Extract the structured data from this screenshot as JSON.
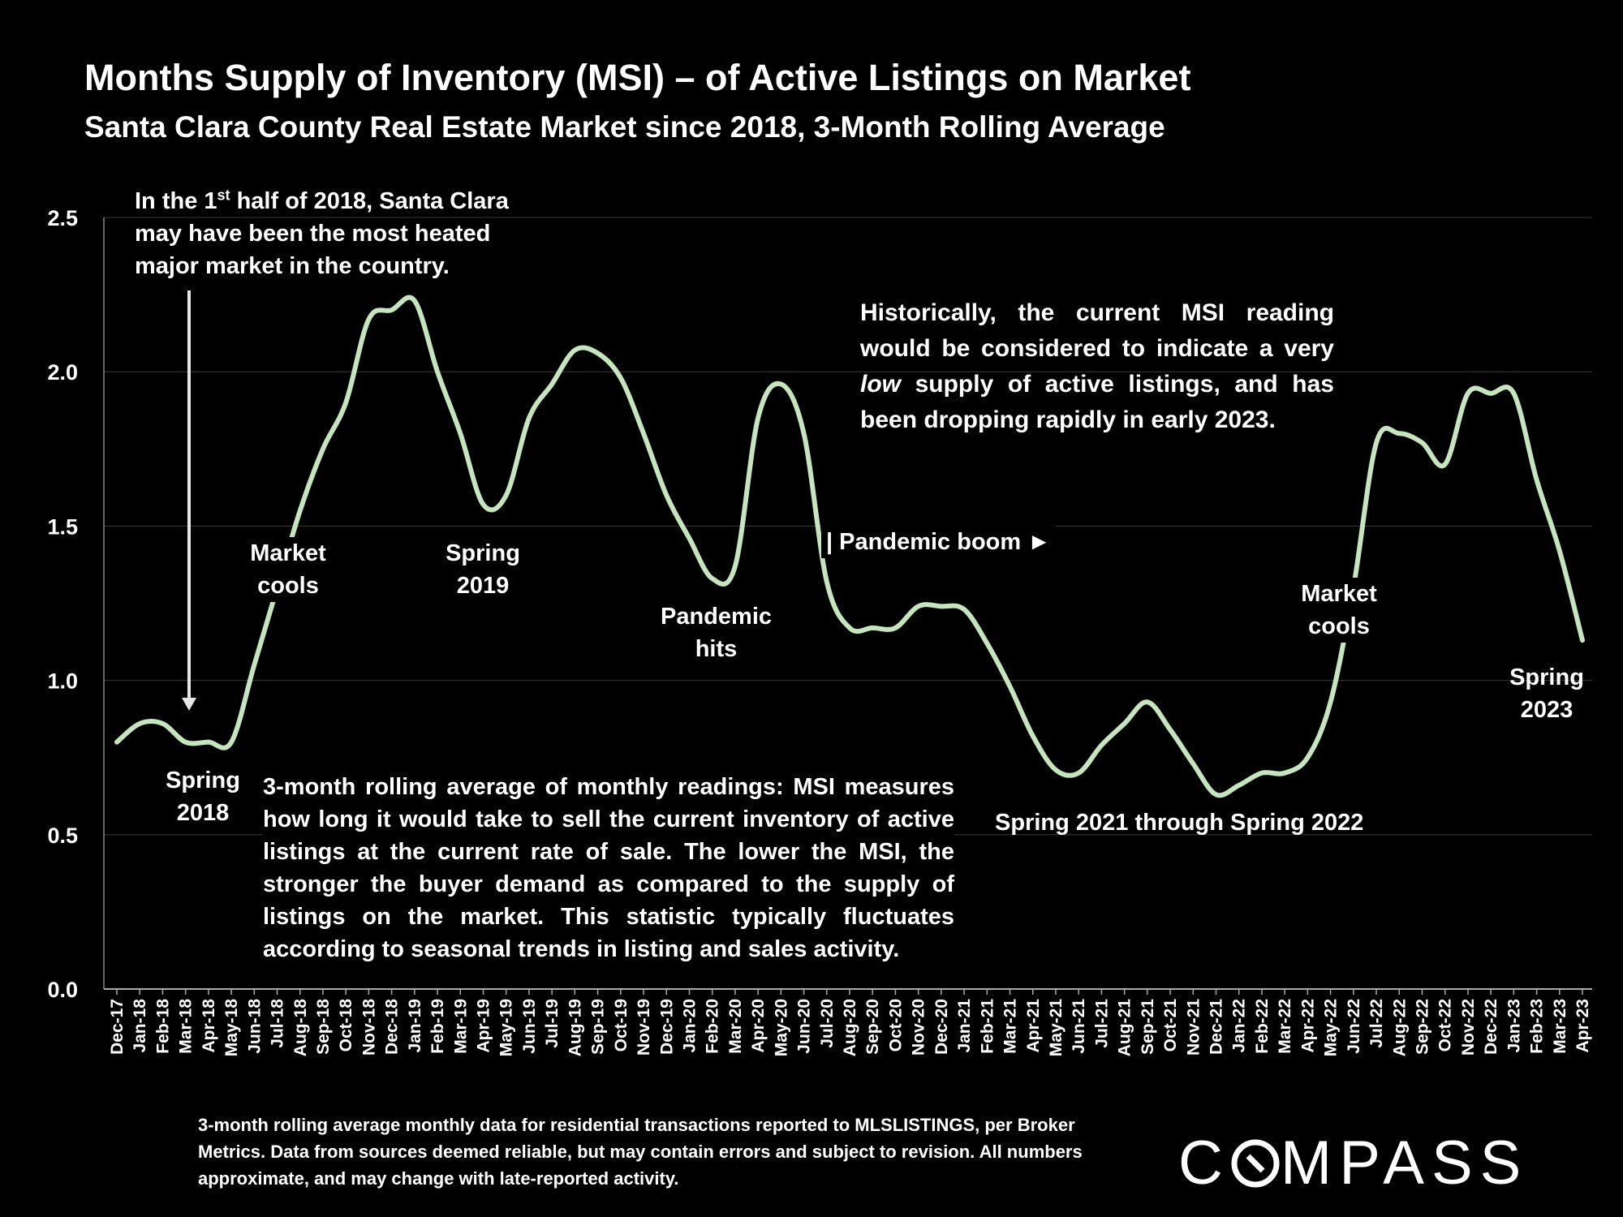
{
  "title": "Months Supply of Inventory (MSI) – of Active Listings on Market",
  "subtitle": "Santa Clara County Real Estate Market since 2018, 3-Month Rolling Average",
  "chart_data": {
    "type": "line",
    "title": "Months Supply of Inventory (MSI) – of Active Listings on Market",
    "subtitle": "Santa Clara County Real Estate Market since 2018, 3-Month Rolling Average",
    "xlabel": "",
    "ylabel": "",
    "ylim": [
      0,
      2.5
    ],
    "yticks": [
      "0.0",
      "0.5",
      "1.0",
      "1.5",
      "2.0",
      "2.5"
    ],
    "grid": true,
    "legend": "none",
    "line_color": "#c6e5bf",
    "categories": [
      "Dec-17",
      "Jan-18",
      "Feb-18",
      "Mar-18",
      "Apr-18",
      "May-18",
      "Jun-18",
      "Jul-18",
      "Aug-18",
      "Sep-18",
      "Oct-18",
      "Nov-18",
      "Dec-18",
      "Jan-19",
      "Feb-19",
      "Mar-19",
      "Apr-19",
      "May-19",
      "Jun-19",
      "Jul-19",
      "Aug-19",
      "Sep-19",
      "Oct-19",
      "Nov-19",
      "Dec-19",
      "Jan-20",
      "Feb-20",
      "Mar-20",
      "Apr-20",
      "May-20",
      "Jun-20",
      "Jul-20",
      "Aug-20",
      "Sep-20",
      "Oct-20",
      "Nov-20",
      "Dec-20",
      "Jan-21",
      "Feb-21",
      "Mar-21",
      "Apr-21",
      "May-21",
      "Jun-21",
      "Jul-21",
      "Aug-21",
      "Sep-21",
      "Oct-21",
      "Nov-21",
      "Dec-21",
      "Jan-22",
      "Feb-22",
      "Mar-22",
      "Apr-22",
      "May-22",
      "Jun-22",
      "Jul-22",
      "Aug-22",
      "Sep-22",
      "Oct-22",
      "Nov-22",
      "Dec-22",
      "Jan-23",
      "Feb-23",
      "Mar-23",
      "Apr-23"
    ],
    "series": [
      {
        "values": [
          0.8,
          0.86,
          0.86,
          0.8,
          0.8,
          0.8,
          1.05,
          1.3,
          1.55,
          1.75,
          1.9,
          2.17,
          2.2,
          2.23,
          2.0,
          1.8,
          1.57,
          1.6,
          1.85,
          1.96,
          2.07,
          2.06,
          1.98,
          1.8,
          1.6,
          1.46,
          1.33,
          1.37,
          1.85,
          1.96,
          1.8,
          1.32,
          1.17,
          1.17,
          1.17,
          1.24,
          1.24,
          1.23,
          1.12,
          0.98,
          0.82,
          0.71,
          0.7,
          0.79,
          0.86,
          0.93,
          0.84,
          0.73,
          0.63,
          0.66,
          0.7,
          0.7,
          0.75,
          0.93,
          1.3,
          1.77,
          1.8,
          1.77,
          1.7,
          1.93,
          1.93,
          1.93,
          1.65,
          1.42,
          1.13
        ]
      }
    ],
    "annotations": {
      "heated": "In the 1st half of 2018, Santa Clara may have been the most heated major market in the country.",
      "historically": "Historically, the current MSI reading would be considered to indicate a very low supply of active listings, and has been dropping rapidly in early 2023.",
      "market_cools_1": "Market cools",
      "spring_2019": "Spring 2019",
      "pandemic_hits": "Pandemic hits",
      "pandemic_boom": "| Pandemic boom ►",
      "spring_2018": "Spring 2018",
      "spring_2021_2022": "Spring 2021 through Spring 2022",
      "market_cools_2": "Market cools",
      "spring_2023": "Spring 2023",
      "explanation": "3-month rolling average of monthly readings: MSI measures how long it would take to sell the current inventory of active listings at the current rate of sale. The lower the MSI, the stronger the buyer demand as compared to the supply of listings on the market. This statistic typically fluctuates according to seasonal trends in listing and sales activity."
    }
  },
  "annotations_html": {
    "heated_a": "In the 1",
    "heated_sup": "st",
    "heated_b": " half of 2018, Santa Clara may have been the most heated major market in the country.",
    "hist_a": "Historically, the current MSI reading would be considered to indicate a very ",
    "hist_em": "low",
    "hist_b": " supply of active listings, and has been dropping rapidly in early 2023."
  },
  "footnote": "3-month rolling average monthly data for residential transactions reported to MLSLISTINGS, per Broker Metrics. Data from sources deemed reliable, but may contain errors and subject to revision. All numbers approximate, and may change with late-reported activity.",
  "logo": {
    "pre": "C",
    "post": "MPASS"
  },
  "colors": {
    "background": "#000000",
    "line": "#c6e5bf",
    "grid": "#3a3a3a",
    "text": "#ffffff"
  }
}
